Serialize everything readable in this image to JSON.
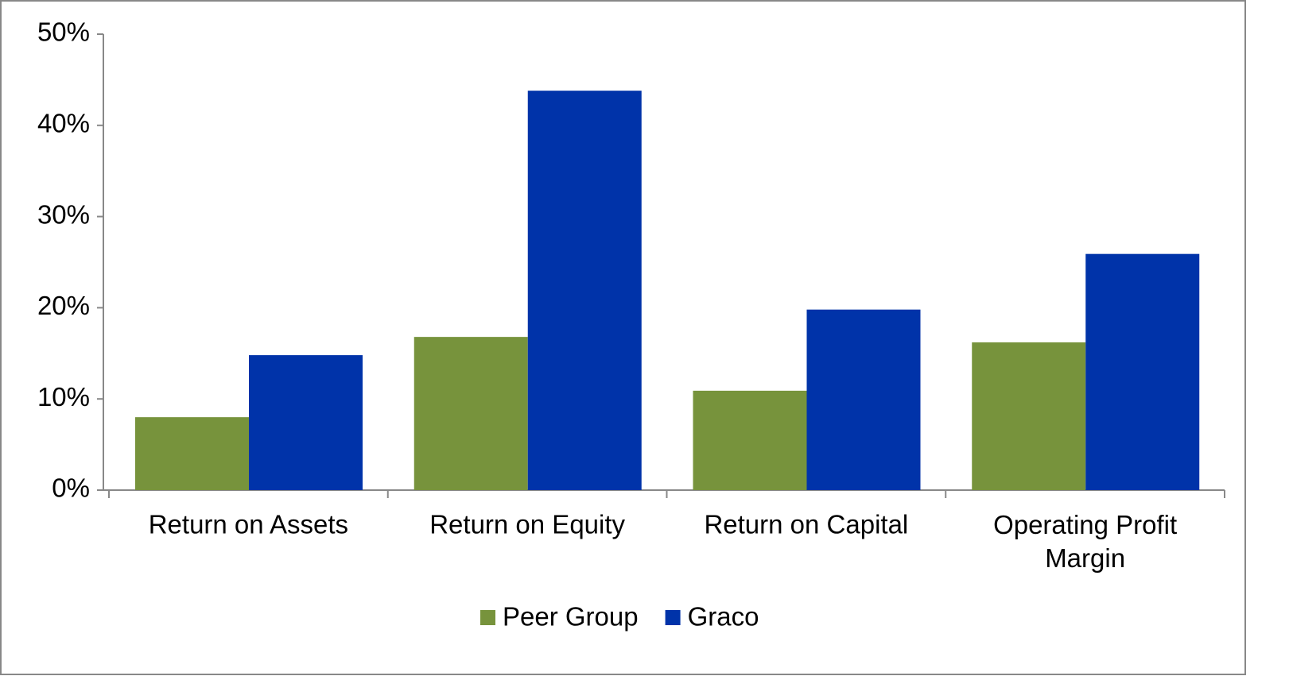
{
  "chart_data": {
    "type": "bar",
    "categories": [
      "Return on Assets",
      "Return on Equity",
      "Return on Capital",
      "Operating Profit Margin"
    ],
    "series": [
      {
        "name": "Peer Group",
        "color": "#77933c",
        "values": [
          8,
          16.8,
          10.9,
          16.2
        ]
      },
      {
        "name": "Graco",
        "color": "#0033a9",
        "values": [
          14.8,
          43.8,
          19.8,
          25.9
        ]
      }
    ],
    "ylim": [
      0,
      50
    ],
    "yticks": [
      {
        "value": 0,
        "label": "0%"
      },
      {
        "value": 10,
        "label": "10%"
      },
      {
        "value": 20,
        "label": "20%"
      },
      {
        "value": 30,
        "label": "30%"
      },
      {
        "value": 40,
        "label": "40%"
      },
      {
        "value": 50,
        "label": "50%"
      }
    ],
    "grid": false,
    "legend": "bottom"
  }
}
